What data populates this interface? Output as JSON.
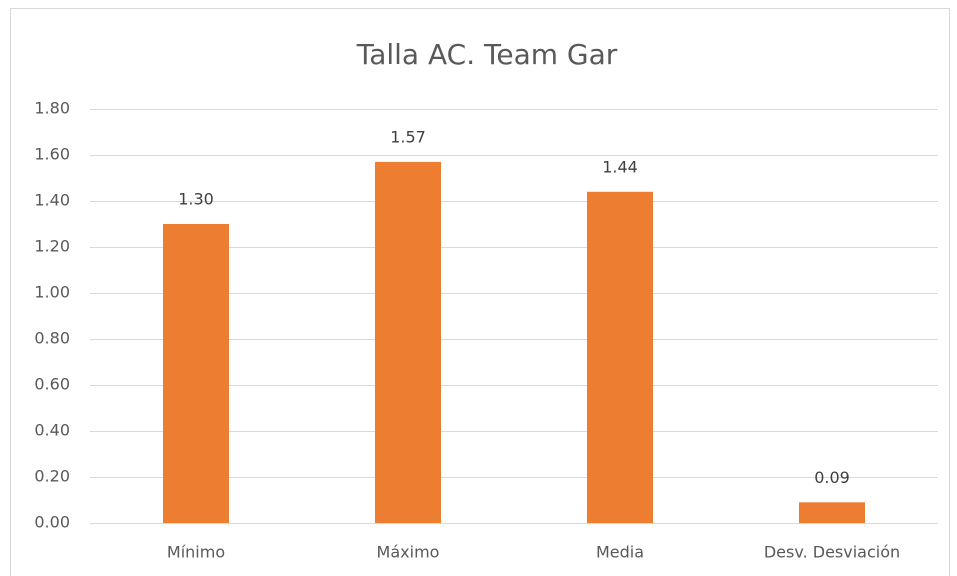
{
  "chart_data": {
    "type": "bar",
    "title": "Talla AC. Team Gar",
    "categories": [
      "Mínimo",
      "Máximo",
      "Media",
      "Desv. Desviación"
    ],
    "values": [
      1.3,
      1.57,
      1.44,
      0.09
    ],
    "value_labels": [
      "1.30",
      "1.57",
      "1.44",
      "0.09"
    ],
    "color": "#ed7d31",
    "ylim": [
      0,
      1.8
    ],
    "yticks": [
      {
        "value": 0,
        "label": "0.00"
      },
      {
        "value": 0.2,
        "label": "0.20"
      },
      {
        "value": 0.4,
        "label": "0.40"
      },
      {
        "value": 0.6,
        "label": "0.60"
      },
      {
        "value": 0.8,
        "label": "0.80"
      },
      {
        "value": 1,
        "label": "1.00"
      },
      {
        "value": 1.2,
        "label": "1.20"
      },
      {
        "value": 1.4,
        "label": "1.40"
      },
      {
        "value": 1.6,
        "label": "1.60"
      },
      {
        "value": 1.8,
        "label": "1.80"
      }
    ],
    "grid": true
  }
}
